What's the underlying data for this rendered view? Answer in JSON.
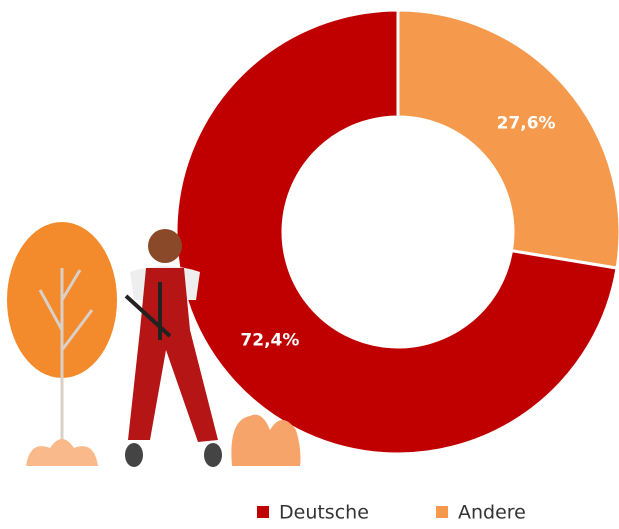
{
  "chart_data": {
    "type": "donut",
    "categories": [
      "Deutsche",
      "Andere"
    ],
    "values": [
      72.4,
      27.6
    ],
    "value_labels": [
      "72,4%",
      "27,6%"
    ],
    "colors": [
      "#c00000",
      "#f59a4c"
    ]
  }
}
